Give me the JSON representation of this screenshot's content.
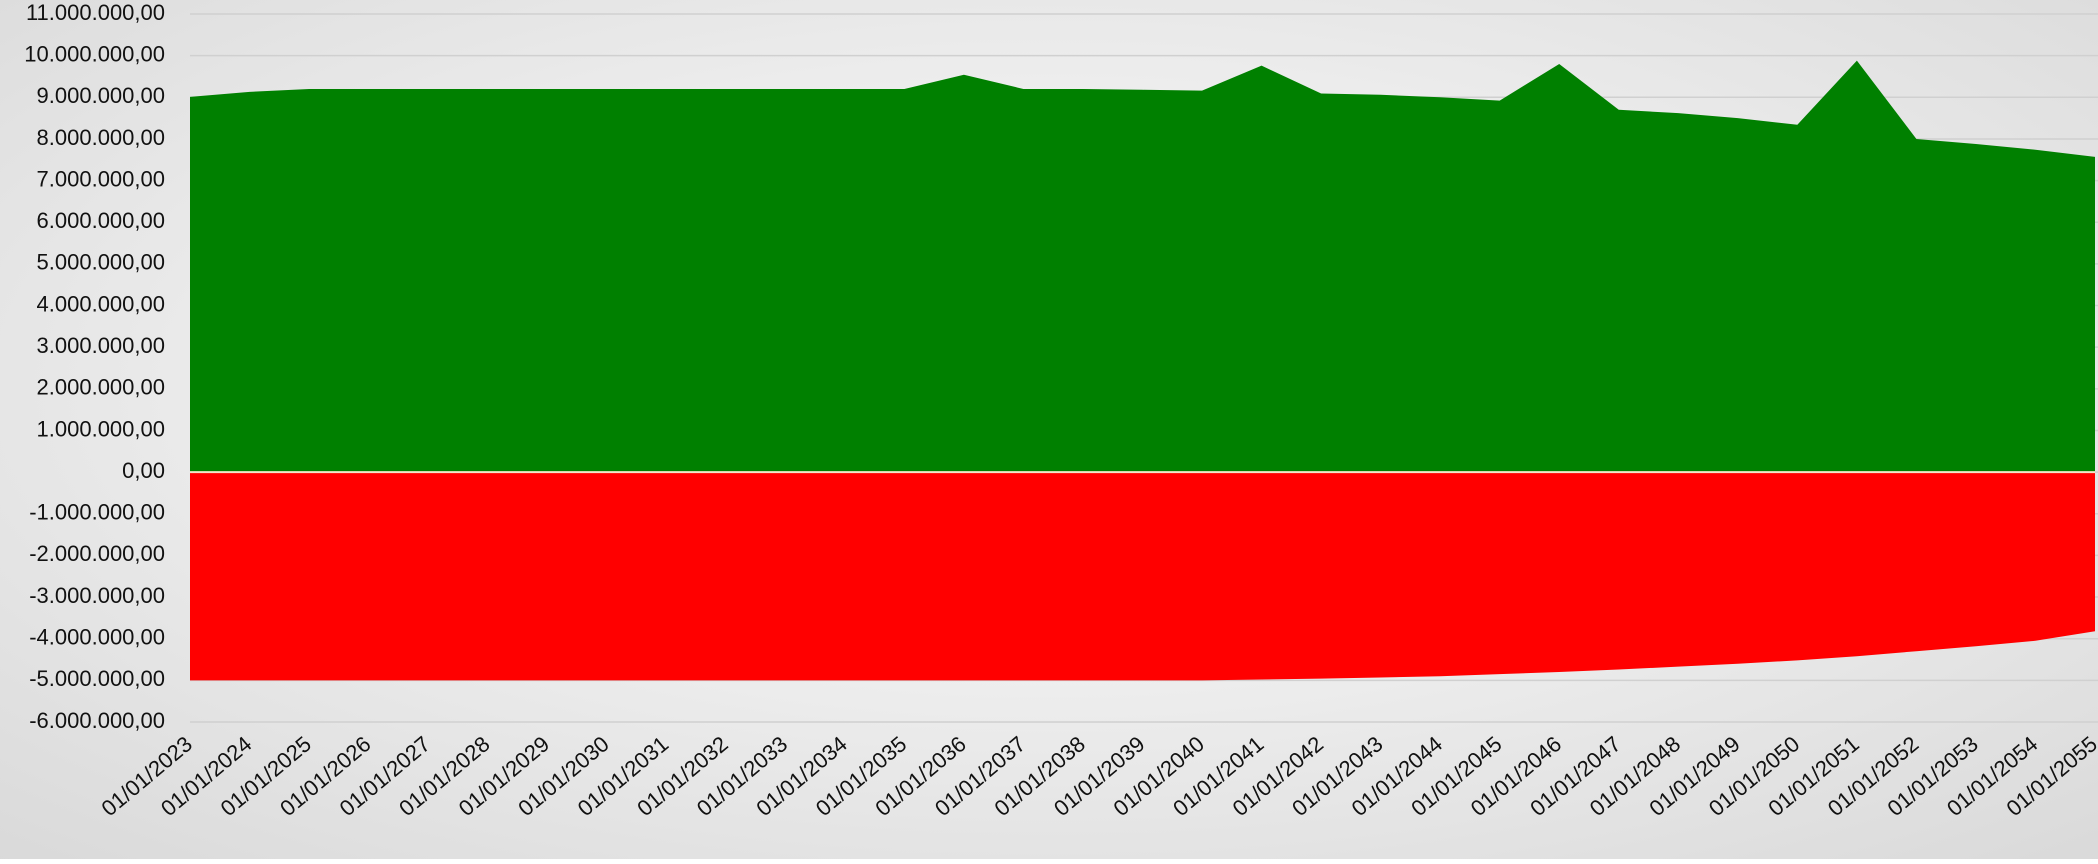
{
  "chart_data": {
    "type": "area",
    "categories": [
      "01/01/2023",
      "01/01/2024",
      "01/01/2025",
      "01/01/2026",
      "01/01/2027",
      "01/01/2028",
      "01/01/2029",
      "01/01/2030",
      "01/01/2031",
      "01/01/2032",
      "01/01/2033",
      "01/01/2034",
      "01/01/2035",
      "01/01/2036",
      "01/01/2037",
      "01/01/2038",
      "01/01/2039",
      "01/01/2040",
      "01/01/2041",
      "01/01/2042",
      "01/01/2043",
      "01/01/2044",
      "01/01/2045",
      "01/01/2046",
      "01/01/2047",
      "01/01/2048",
      "01/01/2049",
      "01/01/2050",
      "01/01/2051",
      "01/01/2052",
      "01/01/2053",
      "01/01/2054",
      "01/01/2055"
    ],
    "series": [
      {
        "color": "#008000",
        "values": [
          9010000,
          9130000,
          9200000,
          9200000,
          9200000,
          9200000,
          9200000,
          9200000,
          9200000,
          9200000,
          9200000,
          9200000,
          9200000,
          9540000,
          9200000,
          9200000,
          9180000,
          9160000,
          9760000,
          9090000,
          9060000,
          9000000,
          8920000,
          9800000,
          8700000,
          8620000,
          8500000,
          8340000,
          9880000,
          8000000,
          7880000,
          7740000,
          7570000
        ]
      },
      {
        "color": "#ff0000",
        "values": [
          -5000000,
          -5000000,
          -5000000,
          -5000000,
          -5000000,
          -5000000,
          -5000000,
          -5000000,
          -5000000,
          -5000000,
          -5000000,
          -5000000,
          -5000000,
          -5000000,
          -5000000,
          -5000000,
          -5000000,
          -5000000,
          -4980000,
          -4960000,
          -4930000,
          -4900000,
          -4850000,
          -4800000,
          -4740000,
          -4670000,
          -4600000,
          -4520000,
          -4420000,
          -4300000,
          -4180000,
          -4050000,
          -3820000
        ]
      }
    ],
    "ylim": [
      -6000000,
      11000000
    ],
    "yticks": [
      {
        "value": -6000000,
        "label": "-6.000.000,00"
      },
      {
        "value": -5000000,
        "label": "-5.000.000,00"
      },
      {
        "value": -4000000,
        "label": "-4.000.000,00"
      },
      {
        "value": -3000000,
        "label": "-3.000.000,00"
      },
      {
        "value": -2000000,
        "label": "-2.000.000,00"
      },
      {
        "value": -1000000,
        "label": "-1.000.000,00"
      },
      {
        "value": 0,
        "label": "0,00"
      },
      {
        "value": 1000000,
        "label": "1.000.000,00"
      },
      {
        "value": 2000000,
        "label": "2.000.000,00"
      },
      {
        "value": 3000000,
        "label": "3.000.000,00"
      },
      {
        "value": 4000000,
        "label": "4.000.000,00"
      },
      {
        "value": 5000000,
        "label": "5.000.000,00"
      },
      {
        "value": 6000000,
        "label": "6.000.000,00"
      },
      {
        "value": 7000000,
        "label": "7.000.000,00"
      },
      {
        "value": 8000000,
        "label": "8.000.000,00"
      },
      {
        "value": 9000000,
        "label": "9.000.000,00"
      },
      {
        "value": 10000000,
        "label": "10.000.000,00"
      },
      {
        "value": 11000000,
        "label": "11.000.000,00"
      }
    ],
    "grid": true
  }
}
